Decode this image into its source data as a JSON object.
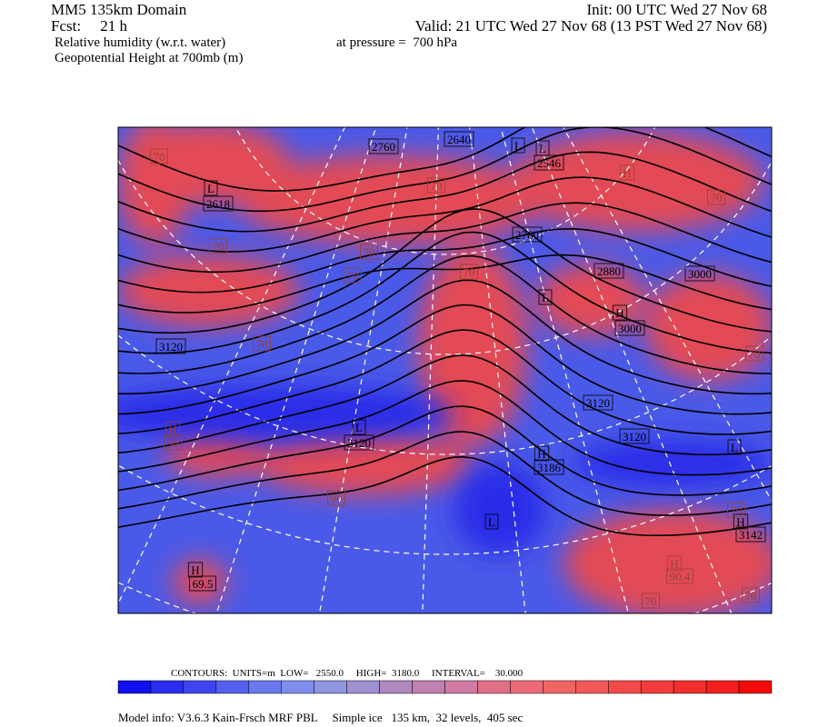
{
  "header": {
    "title": "MM5 135km Domain",
    "init": "Init: 00 UTC Wed 27 Nov 68",
    "fcst": "Fcst:     21 h",
    "valid": "Valid: 21 UTC Wed 27 Nov 68 (13 PST Wed 27 Nov 68)",
    "field1": "Relative humidity (w.r.t. water)",
    "level": "at pressure =  700 hPa",
    "field2": "Geopotential Height at 700mb (m)"
  },
  "map_labels": [
    "70",
    "2760",
    "2640",
    "L",
    "L",
    "2546",
    "L",
    "2618",
    "70",
    "H",
    "70",
    "70",
    "70",
    "2760",
    "70",
    "70",
    "2880",
    "3000",
    "L",
    "H",
    "3000",
    "3120",
    "70",
    "70",
    "3120",
    "3120",
    "H",
    "90",
    "L",
    "3120",
    "H",
    "3186",
    "L",
    "90",
    "70",
    "H",
    "3142",
    "L",
    "H",
    "90.4",
    "H",
    "69.5",
    "70",
    "70"
  ],
  "colorbar": [
    "#1010f0",
    "#2a2cf2",
    "#3f44f2",
    "#5460f0",
    "#6a78ee",
    "#7f8eec",
    "#9096e0",
    "#a090d0",
    "#b088c0",
    "#c080b0",
    "#d07aa4",
    "#e07088",
    "#ec6a78",
    "#f26464",
    "#f45858",
    "#f44a4a",
    "#f43c3c",
    "#f42e2e",
    "#f41e1e",
    "#f00a0a"
  ],
  "footer": {
    "contours": "CONTOURS:  UNITS=m  LOW=   2550.0     HIGH=  3180.0     INTERVAL=    30.000",
    "model": "Model info: V3.6.3 Kain-Frsch MRF PBL     Simple ice   135 km,  32 levels,  405 sec"
  }
}
